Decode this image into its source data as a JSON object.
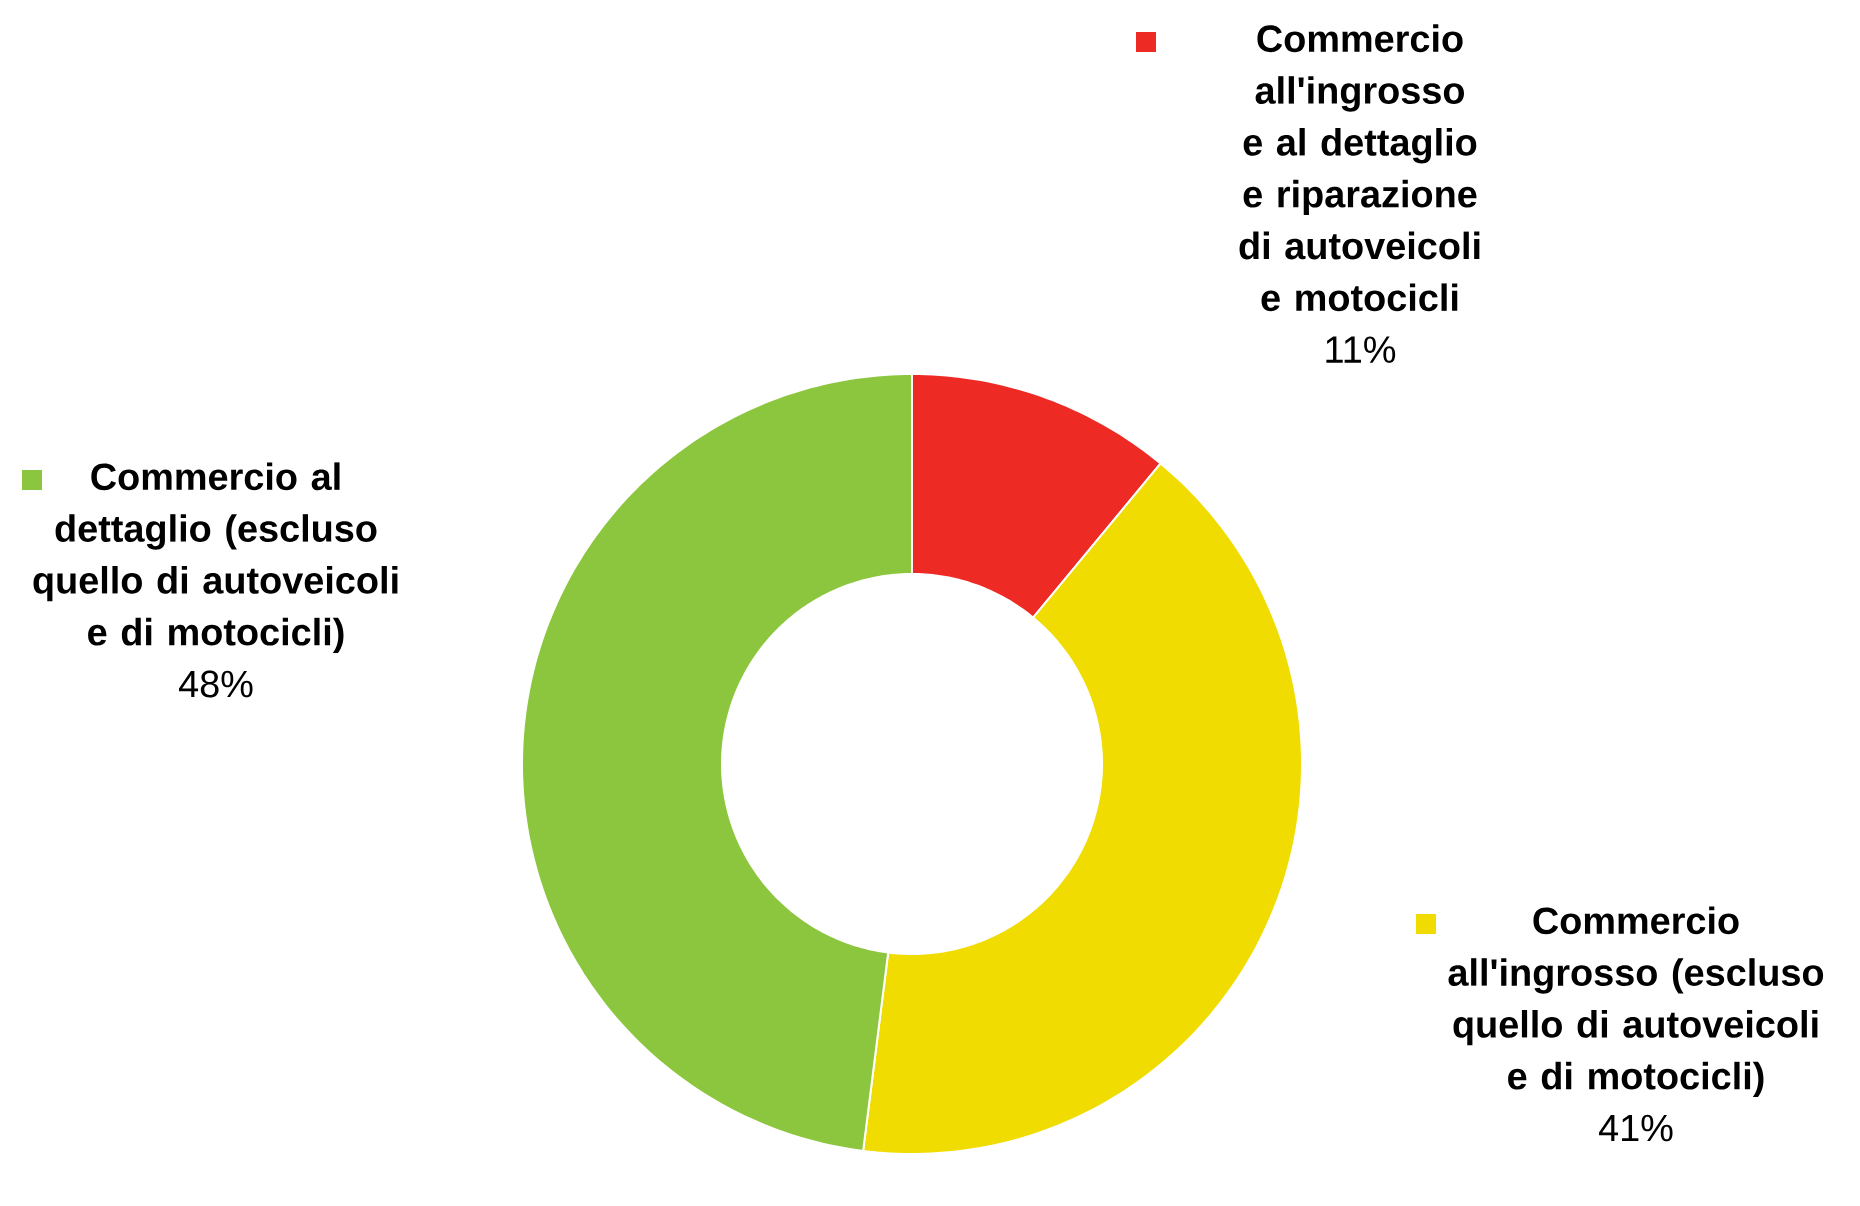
{
  "chart_data": {
    "type": "donut",
    "categories": [
      "Commercio all'ingrosso e al dettaglio e riparazione di autoveicoli e motocicli",
      "Commercio all'ingrosso (escluso quello di autoveicoli e di motocicli)",
      "Commercio al dettaglio (escluso quello di autoveicoli e di motocicli)"
    ],
    "values": [
      11,
      41,
      48
    ],
    "value_labels": [
      "11%",
      "41%",
      "48%"
    ],
    "colors": [
      "#ee2a24",
      "#f0dc00",
      "#8cc63f"
    ],
    "legend": "top left"
  }
}
